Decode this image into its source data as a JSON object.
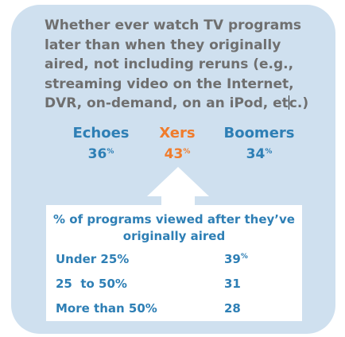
{
  "question": {
    "text_before_cursor": "Whether ever watch TV programs later than when they originally aired, not including reruns (e.g., streaming video on the Internet, DVR, on-demand, on an iPod, et",
    "text_after_cursor": "c.)"
  },
  "chart_data": [
    {
      "type": "bar",
      "title": "Whether ever watch TV programs later than when they originally aired, not including reruns (e.g., streaming video on the Internet, DVR, on-demand, on an iPod, etc.)",
      "categories": [
        "Echoes",
        "Xers",
        "Boomers"
      ],
      "values": [
        36,
        43,
        34
      ],
      "display_values": [
        "36",
        "43",
        "34"
      ],
      "unit": "%",
      "colors": {
        "Echoes": "#2e7fb5",
        "Xers": "#f07c2c",
        "Boomers": "#2e7fb5"
      },
      "highlight": "Xers"
    },
    {
      "type": "table",
      "title": "% of programs viewed after they’ve originally aired",
      "rows": [
        {
          "label": "Under 25%",
          "value": 39,
          "display": "39",
          "unit": "%"
        },
        {
          "label": "25  to 50%",
          "value": 31,
          "display": "31",
          "unit": ""
        },
        {
          "label": "More than 50%",
          "value": 28,
          "display": "28",
          "unit": ""
        }
      ]
    }
  ],
  "colors": {
    "panel": "#cfe0ef",
    "accent_blue": "#2e7fb5",
    "accent_orange": "#f07c2c",
    "question_text": "#6f6f6f"
  },
  "footnote": "",
  "icons": {
    "arrow": "up-arrow-icon"
  }
}
